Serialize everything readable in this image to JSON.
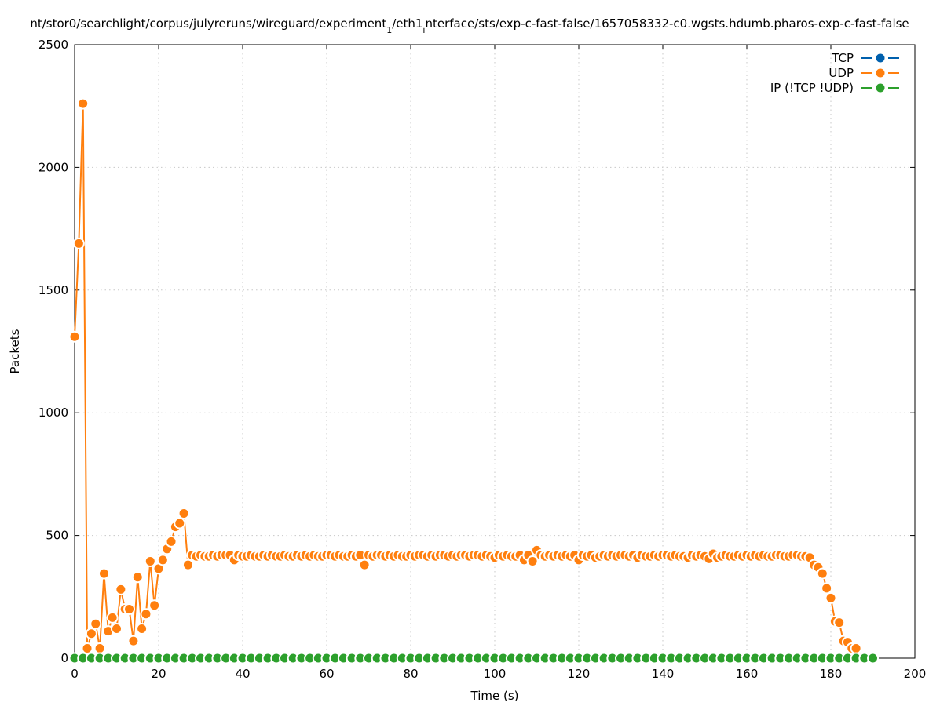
{
  "chart_data": {
    "type": "line",
    "title": "nt/stor0/searchlight/corpus/julyreruns/wireguard/experiment",
    "title_sub1": "1",
    "title_mid": "/eth1",
    "title_sub2": "i",
    "title_end": "nterface/sts/exp-c-fast-false/1657058332-c0.wgsts.hdumb.pharos-exp-c-fast-false",
    "xlabel": "Time (s)",
    "ylabel": "Packets",
    "xlim": [
      0,
      200
    ],
    "ylim": [
      0,
      2500
    ],
    "xticks": [
      0,
      20,
      40,
      60,
      80,
      100,
      120,
      140,
      160,
      180,
      200
    ],
    "yticks": [
      0,
      500,
      1000,
      1500,
      2000,
      2500
    ],
    "grid": true,
    "legend_position": "top-right",
    "series": [
      {
        "name": "TCP",
        "color": "#0060ad",
        "x": [],
        "values": []
      },
      {
        "name": "UDP",
        "color": "#ff7f0e",
        "x": [
          0,
          1,
          2,
          3,
          4,
          5,
          6,
          7,
          8,
          9,
          10,
          11,
          12,
          13,
          14,
          15,
          16,
          17,
          18,
          19,
          20,
          21,
          22,
          23,
          24,
          25,
          26,
          27,
          28,
          29,
          30,
          31,
          32,
          33,
          34,
          35,
          36,
          37,
          38,
          39,
          40,
          41,
          42,
          43,
          44,
          45,
          46,
          47,
          48,
          49,
          50,
          51,
          52,
          53,
          54,
          55,
          56,
          57,
          58,
          59,
          60,
          61,
          62,
          63,
          64,
          65,
          66,
          67,
          68,
          69,
          70,
          71,
          72,
          73,
          74,
          75,
          76,
          77,
          78,
          79,
          80,
          81,
          82,
          83,
          84,
          85,
          86,
          87,
          88,
          89,
          90,
          91,
          92,
          93,
          94,
          95,
          96,
          97,
          98,
          99,
          100,
          101,
          102,
          103,
          104,
          105,
          106,
          107,
          108,
          109,
          110,
          111,
          112,
          113,
          114,
          115,
          116,
          117,
          118,
          119,
          120,
          121,
          122,
          123,
          124,
          125,
          126,
          127,
          128,
          129,
          130,
          131,
          132,
          133,
          134,
          135,
          136,
          137,
          138,
          139,
          140,
          141,
          142,
          143,
          144,
          145,
          146,
          147,
          148,
          149,
          150,
          151,
          152,
          153,
          154,
          155,
          156,
          157,
          158,
          159,
          160,
          161,
          162,
          163,
          164,
          165,
          166,
          167,
          168,
          169,
          170,
          171,
          172,
          173,
          174,
          175,
          176,
          177,
          178,
          179,
          180,
          181,
          182,
          183,
          184,
          185,
          186,
          187,
          188,
          189,
          190
        ],
        "values": [
          1310,
          1690,
          2260,
          40,
          100,
          140,
          40,
          345,
          110,
          165,
          120,
          280,
          200,
          200,
          70,
          330,
          120,
          180,
          395,
          215,
          365,
          400,
          445,
          475,
          535,
          550,
          590,
          380,
          420,
          415,
          420,
          415,
          415,
          420,
          415,
          420,
          420,
          420,
          400,
          420,
          415,
          415,
          420,
          415,
          415,
          420,
          415,
          420,
          415,
          415,
          420,
          415,
          415,
          420,
          415,
          420,
          415,
          420,
          415,
          415,
          420,
          420,
          415,
          420,
          415,
          415,
          420,
          415,
          420,
          380,
          420,
          415,
          420,
          420,
          415,
          420,
          415,
          420,
          415,
          415,
          420,
          415,
          420,
          420,
          415,
          420,
          415,
          420,
          420,
          415,
          420,
          415,
          420,
          420,
          415,
          420,
          420,
          415,
          420,
          415,
          410,
          420,
          415,
          420,
          415,
          415,
          420,
          400,
          420,
          395,
          440,
          420,
          415,
          420,
          415,
          420,
          415,
          420,
          415,
          420,
          400,
          420,
          415,
          420,
          410,
          415,
          420,
          415,
          420,
          415,
          420,
          420,
          415,
          420,
          410,
          420,
          415,
          415,
          420,
          415,
          420,
          420,
          415,
          420,
          415,
          415,
          410,
          420,
          415,
          420,
          415,
          405,
          425,
          410,
          415,
          420,
          415,
          415,
          420,
          415,
          420,
          415,
          420,
          415,
          420,
          415,
          415,
          420,
          420,
          415,
          415,
          420,
          420,
          415,
          415,
          410,
          380,
          370,
          345,
          285,
          245,
          150,
          145,
          70,
          65,
          40,
          40,
          0,
          0,
          0,
          0
        ]
      },
      {
        "name": "IP (!TCP  !UDP)",
        "color": "#2ca02c",
        "x": [
          0,
          2,
          4,
          6,
          8,
          10,
          12,
          14,
          16,
          18,
          20,
          22,
          24,
          26,
          28,
          30,
          32,
          34,
          36,
          38,
          40,
          42,
          44,
          46,
          48,
          50,
          52,
          54,
          56,
          58,
          60,
          62,
          64,
          66,
          68,
          70,
          72,
          74,
          76,
          78,
          80,
          82,
          84,
          86,
          88,
          90,
          92,
          94,
          96,
          98,
          100,
          102,
          104,
          106,
          108,
          110,
          112,
          114,
          116,
          118,
          120,
          122,
          124,
          126,
          128,
          130,
          132,
          134,
          136,
          138,
          140,
          142,
          144,
          146,
          148,
          150,
          152,
          154,
          156,
          158,
          160,
          162,
          164,
          166,
          168,
          170,
          172,
          174,
          176,
          178,
          180,
          182,
          184,
          186,
          188,
          190
        ],
        "values": [
          0,
          0,
          0,
          0,
          0,
          0,
          0,
          0,
          0,
          0,
          0,
          0,
          0,
          0,
          0,
          0,
          0,
          0,
          0,
          0,
          0,
          0,
          0,
          0,
          0,
          0,
          0,
          0,
          0,
          0,
          0,
          0,
          0,
          0,
          0,
          0,
          0,
          0,
          0,
          0,
          0,
          0,
          0,
          0,
          0,
          0,
          0,
          0,
          0,
          0,
          0,
          0,
          0,
          0,
          0,
          0,
          0,
          0,
          0,
          0,
          0,
          0,
          0,
          0,
          0,
          0,
          0,
          0,
          0,
          0,
          0,
          0,
          0,
          0,
          0,
          0,
          0,
          0,
          0,
          0,
          0,
          0,
          0,
          0,
          0,
          0,
          0,
          0,
          0,
          0,
          0,
          0,
          0,
          0,
          0,
          0
        ]
      }
    ]
  }
}
